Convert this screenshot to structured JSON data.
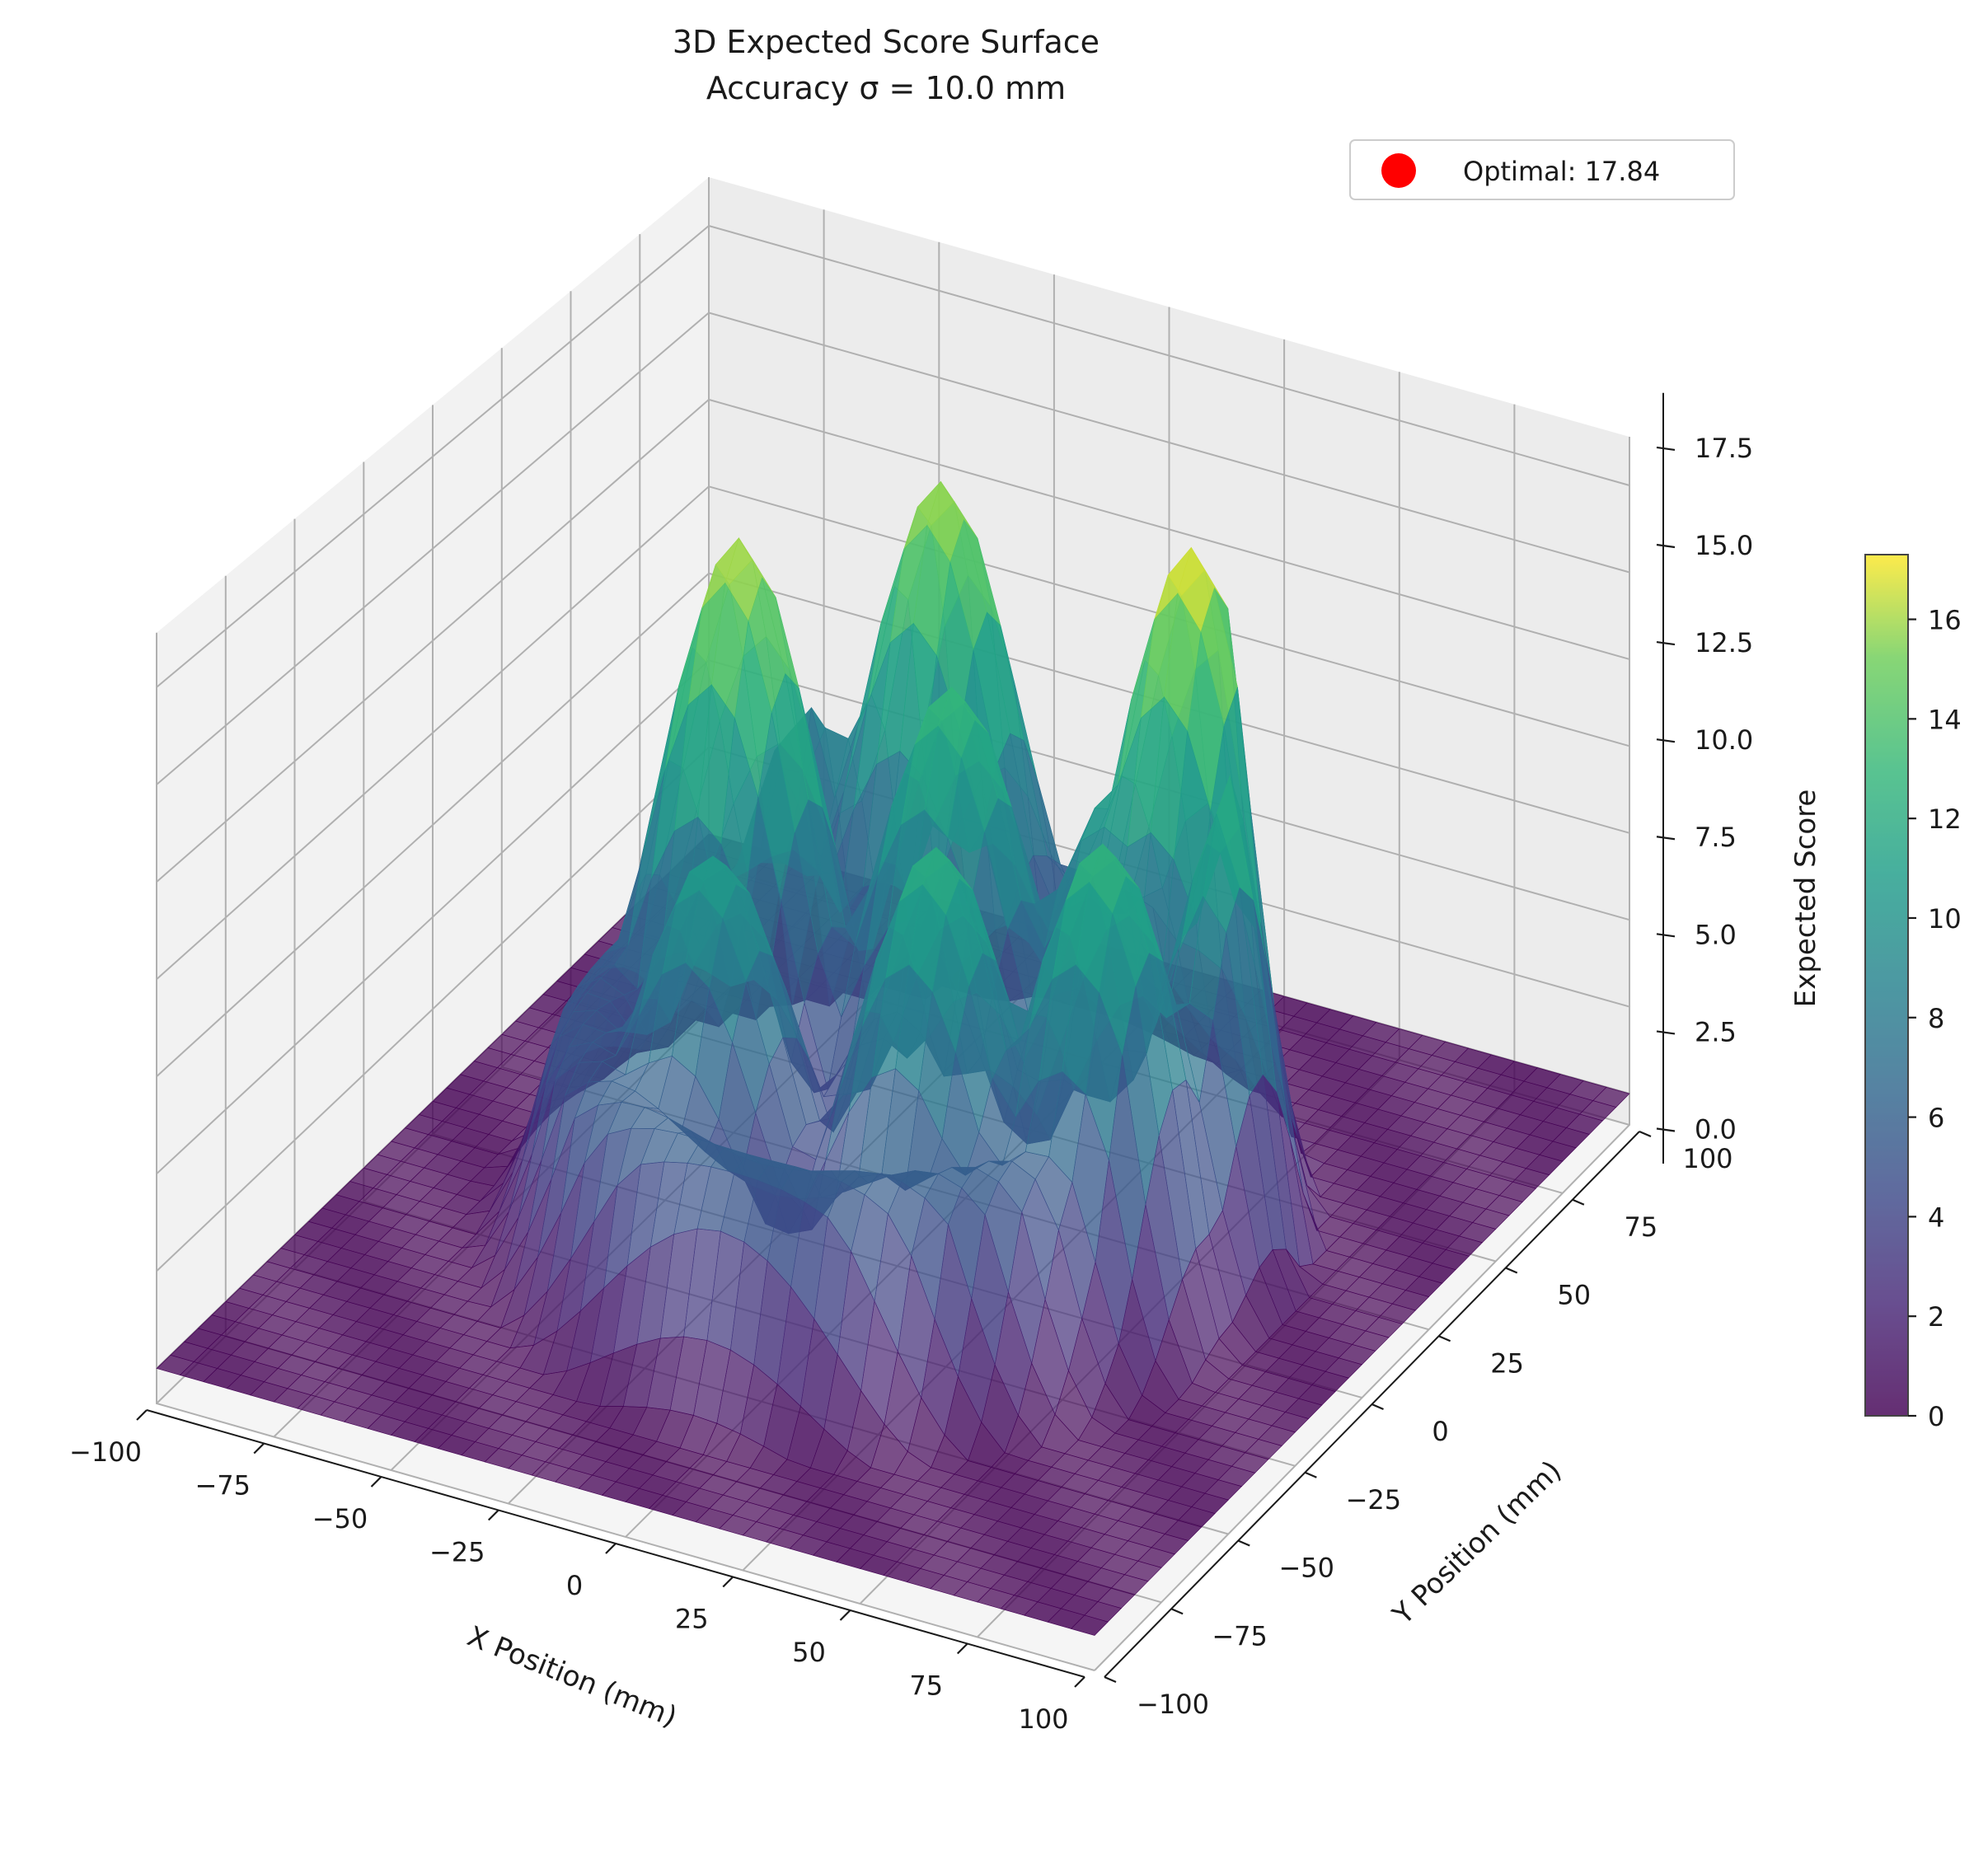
{
  "chart_data": {
    "type": "surface3d",
    "title": "3D Expected Score Surface",
    "subtitle": "Accuracy σ = 10.0 mm",
    "xlabel": "X Position (mm)",
    "ylabel": "Y Position (mm)",
    "zlabel": "Expected Score",
    "xlim": [
      -100,
      100
    ],
    "ylim": [
      -100,
      100
    ],
    "zlim": [
      -0.9,
      18.9
    ],
    "x_ticks": [
      "−100",
      "−75",
      "−50",
      "−25",
      "0",
      "25",
      "50",
      "75",
      "100"
    ],
    "x_tick_values": [
      -100,
      -75,
      -50,
      -25,
      0,
      25,
      50,
      75,
      100
    ],
    "y_ticks": [
      "−100",
      "−75",
      "−50",
      "−25",
      "0",
      "25",
      "50",
      "75",
      "100"
    ],
    "y_tick_values": [
      -100,
      -75,
      -50,
      -25,
      0,
      25,
      50,
      75,
      100
    ],
    "z_ticks": [
      "0.0",
      "2.5",
      "5.0",
      "7.5",
      "10.0",
      "12.5",
      "15.0",
      "17.5"
    ],
    "z_tick_values": [
      0,
      2.5,
      5,
      7.5,
      10,
      12.5,
      15,
      17.5
    ],
    "colormap": "viridis",
    "colorbar": {
      "min": 0,
      "max": 17.3,
      "ticks": [
        "0",
        "2",
        "4",
        "6",
        "8",
        "10",
        "12",
        "14",
        "16"
      ],
      "tick_values": [
        0,
        2,
        4,
        6,
        8,
        10,
        12,
        14,
        16
      ]
    },
    "surface": {
      "outer_radius": 72,
      "peaks": [
        {
          "x": 40,
          "y": 40,
          "z": 17.5
        },
        {
          "x": -20,
          "y": 50,
          "z": 16.5
        },
        {
          "x": 0,
          "y": 20,
          "z": 13.5
        },
        {
          "x": 30,
          "y": 30,
          "z": 11.0
        },
        {
          "x": -40,
          "y": 10,
          "z": 16.8
        },
        {
          "x": 50,
          "y": -10,
          "z": 13.0
        },
        {
          "x": 20,
          "y": -20,
          "z": 12.5
        },
        {
          "x": -25,
          "y": -25,
          "z": 11.0
        },
        {
          "x": -55,
          "y": 55,
          "z": 15.0
        },
        {
          "x": 65,
          "y": 20,
          "z": 14.0
        }
      ]
    },
    "optimal": {
      "label": "Optimal: 17.84",
      "value": 17.84,
      "color": "#ff0000"
    },
    "legend_position": "top-right",
    "grid": true
  }
}
